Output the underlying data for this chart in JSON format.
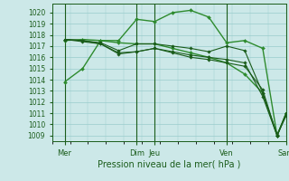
{
  "background_color": "#cce8e8",
  "grid_color": "#99cccc",
  "line_color_dark": "#1a5c1a",
  "line_color_light": "#2e8b2e",
  "xlabel": "Pression niveau de la mer( hPa )",
  "ylim": [
    1008.5,
    1020.8
  ],
  "yticks": [
    1009,
    1010,
    1011,
    1012,
    1013,
    1014,
    1015,
    1016,
    1017,
    1018,
    1019,
    1020
  ],
  "xlim": [
    0,
    130
  ],
  "vline_positions": [
    7,
    47,
    57,
    97,
    130
  ],
  "xtick_positions": [
    7,
    47,
    57,
    97,
    130
  ],
  "xtick_labels": [
    "Mer",
    "Dim",
    "Jeu",
    "Ven",
    "Sam"
  ],
  "series": [
    {
      "x": [
        7,
        17,
        27,
        37,
        47,
        57,
        67,
        77,
        87,
        97,
        107,
        117,
        125,
        130
      ],
      "y": [
        1013.8,
        1015.0,
        1017.5,
        1017.3,
        1017.2,
        1017.2,
        1016.8,
        1016.4,
        1016.0,
        1015.5,
        1014.5,
        1012.8,
        1009.0,
        1011.0
      ],
      "color": "#2e8b2e",
      "lw": 1.0,
      "marker": "D",
      "ms": 2.0
    },
    {
      "x": [
        7,
        17,
        27,
        37,
        47,
        57,
        67,
        77,
        87,
        97,
        107,
        117,
        125,
        130
      ],
      "y": [
        1017.5,
        1017.6,
        1017.5,
        1017.5,
        1019.4,
        1019.2,
        1020.0,
        1020.2,
        1019.6,
        1017.3,
        1017.5,
        1016.8,
        1009.0,
        1011.0
      ],
      "color": "#2e8b2e",
      "lw": 1.0,
      "marker": "D",
      "ms": 2.0
    },
    {
      "x": [
        7,
        17,
        27,
        37,
        47,
        57,
        67,
        77,
        87,
        97,
        107,
        117,
        125,
        130
      ],
      "y": [
        1017.6,
        1017.5,
        1017.3,
        1016.6,
        1017.2,
        1017.2,
        1017.0,
        1016.8,
        1016.5,
        1017.0,
        1016.6,
        1012.8,
        1009.1,
        1010.8
      ],
      "color": "#1a5c1a",
      "lw": 0.8,
      "marker": "D",
      "ms": 1.8
    },
    {
      "x": [
        7,
        17,
        27,
        37,
        47,
        57,
        67,
        77,
        87,
        97,
        107,
        117,
        125,
        130
      ],
      "y": [
        1017.6,
        1017.5,
        1017.2,
        1016.3,
        1016.5,
        1016.8,
        1016.5,
        1016.2,
        1016.0,
        1015.8,
        1015.5,
        1012.5,
        1009.0,
        1011.0
      ],
      "color": "#1a5c1a",
      "lw": 0.8,
      "marker": "D",
      "ms": 1.8
    },
    {
      "x": [
        7,
        17,
        27,
        37,
        47,
        57,
        67,
        77,
        87,
        97,
        107,
        117,
        125,
        130
      ],
      "y": [
        1017.6,
        1017.4,
        1017.2,
        1016.4,
        1016.5,
        1016.8,
        1016.4,
        1016.0,
        1015.8,
        1015.5,
        1015.2,
        1013.1,
        1009.0,
        1010.8
      ],
      "color": "#1a5c1a",
      "lw": 0.8,
      "marker": "D",
      "ms": 1.8
    }
  ]
}
